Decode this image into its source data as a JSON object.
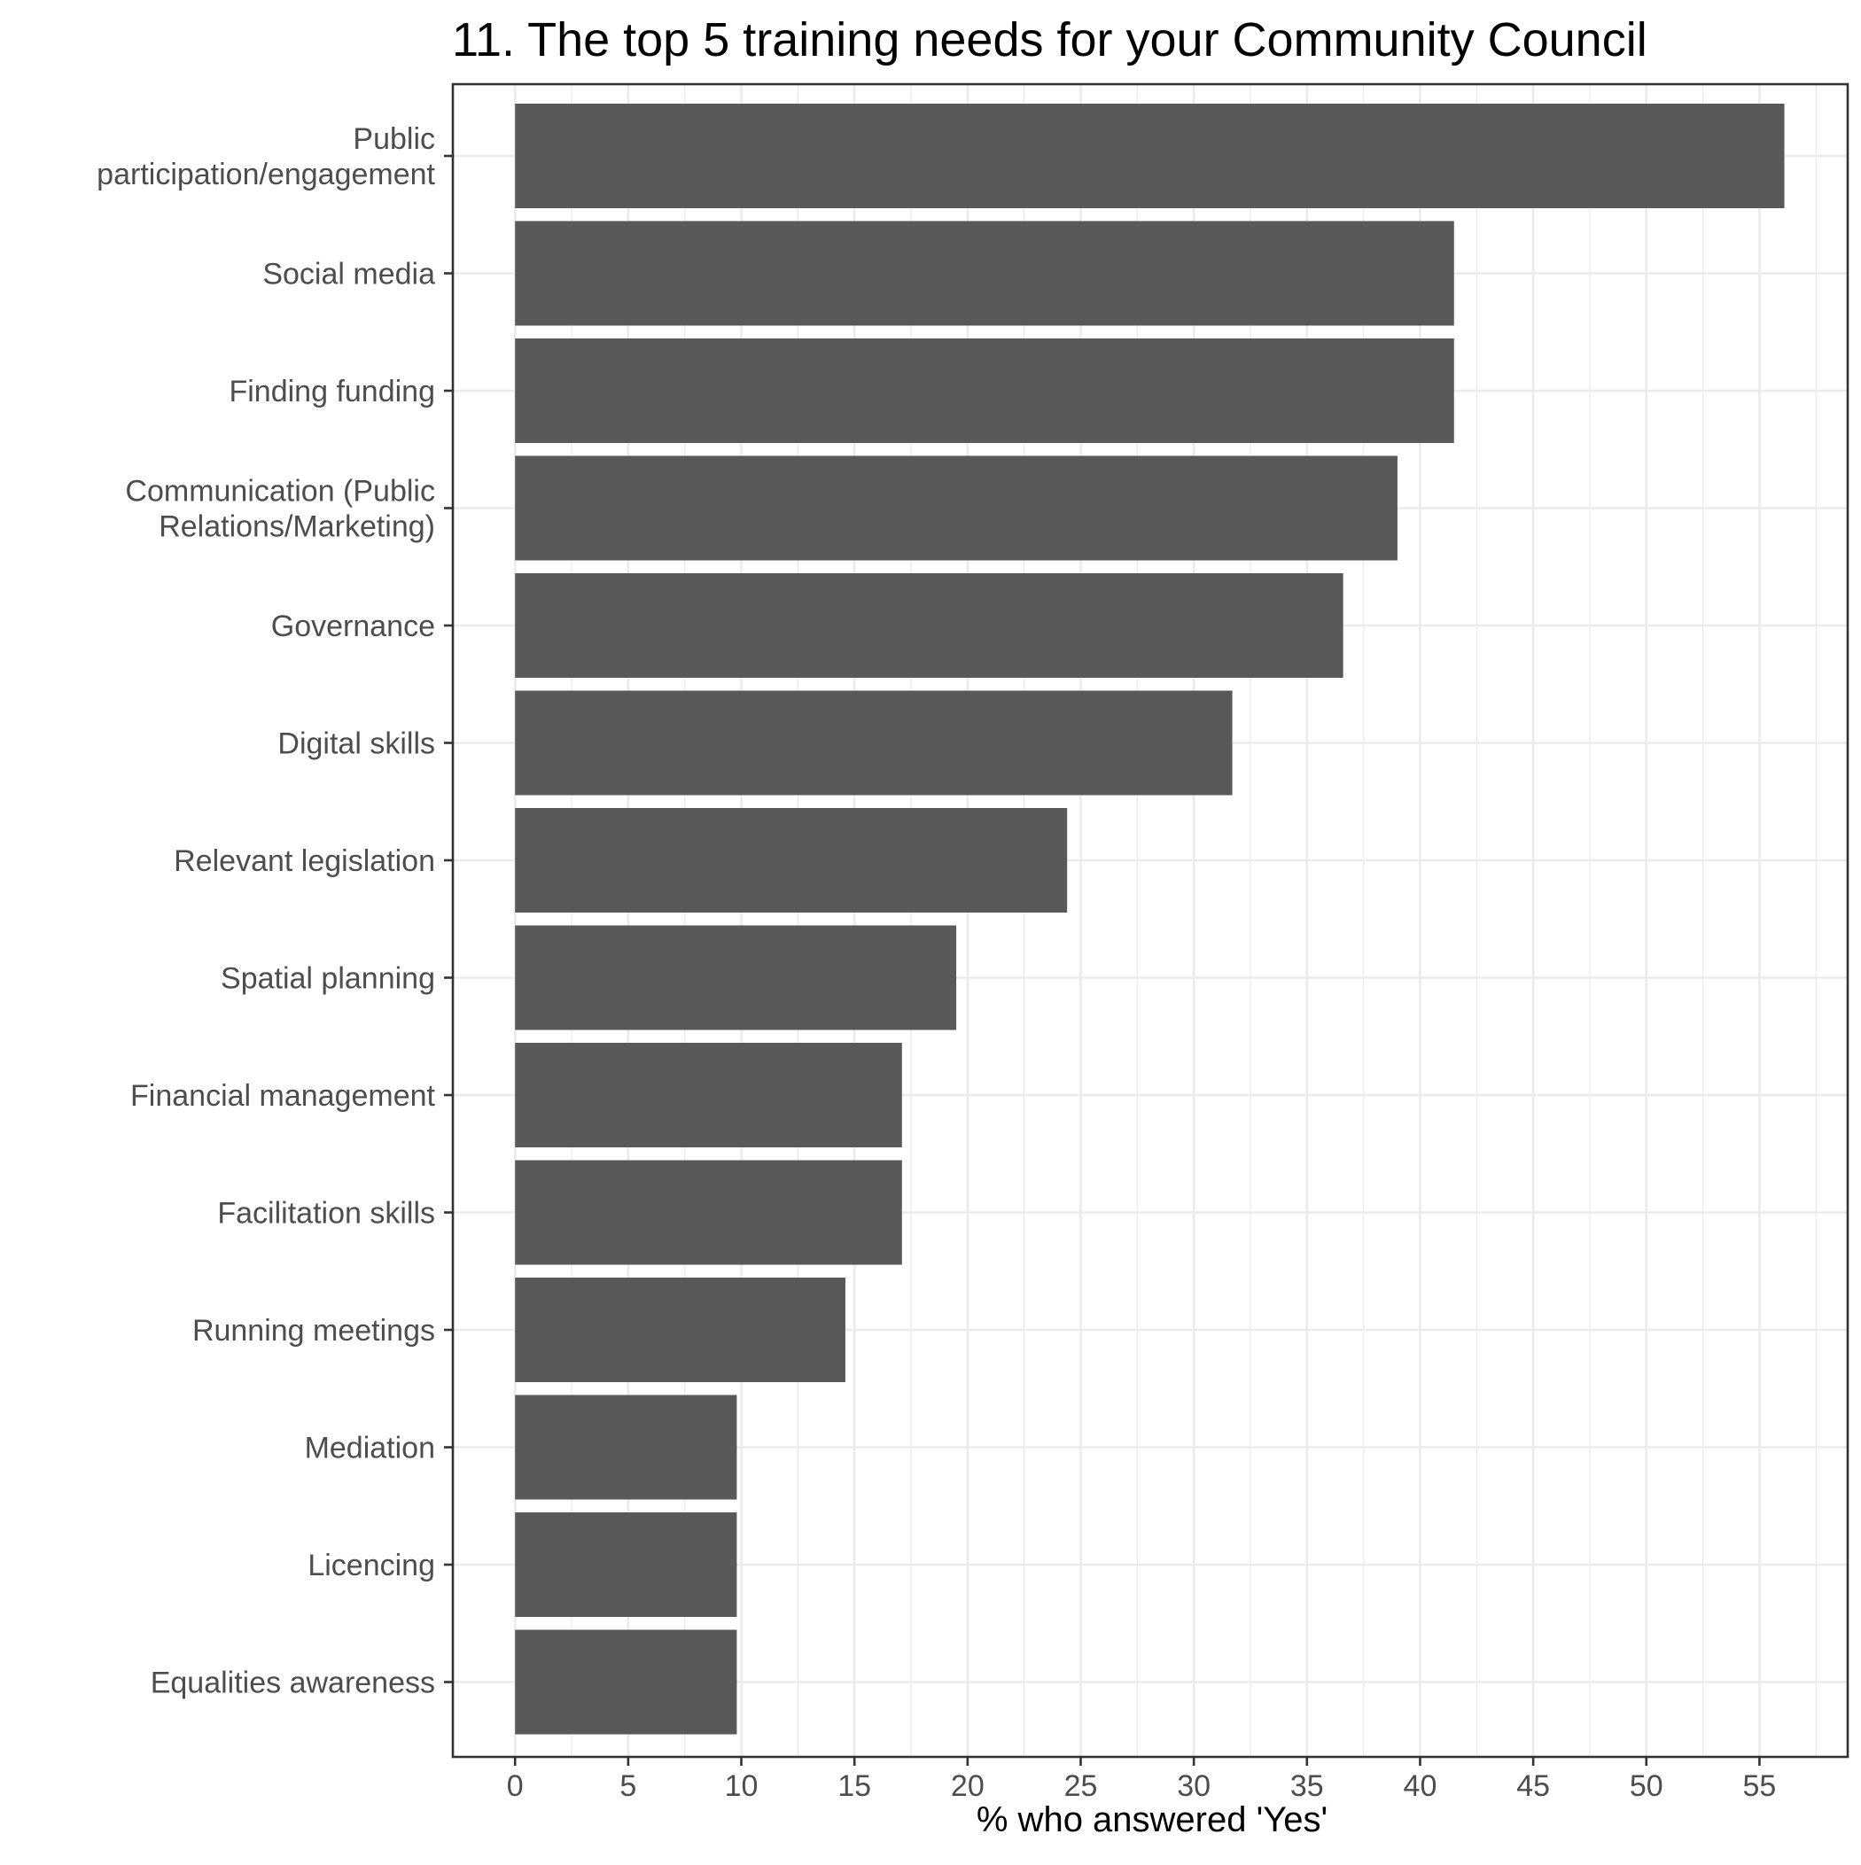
{
  "chart_data": {
    "type": "bar",
    "orientation": "horizontal",
    "title": "11.  The top 5 training needs for your Community Council",
    "xlabel": "% who answered 'Yes'",
    "ylabel": "",
    "categories": [
      "Public participation/engagement",
      "Social media",
      "Finding funding",
      "Communication (Public Relations/Marketing)",
      "Governance",
      "Digital skills",
      "Relevant legislation",
      "Spatial planning",
      "Financial management",
      "Facilitation skills",
      "Running meetings",
      "Mediation",
      "Licencing",
      "Equalities awareness"
    ],
    "category_label_lines": [
      [
        "Public",
        "participation/engagement"
      ],
      [
        "Social media"
      ],
      [
        "Finding funding"
      ],
      [
        "Communication (Public",
        "Relations/Marketing)"
      ],
      [
        "Governance"
      ],
      [
        "Digital skills"
      ],
      [
        "Relevant legislation"
      ],
      [
        "Spatial planning"
      ],
      [
        "Financial management"
      ],
      [
        "Facilitation skills"
      ],
      [
        "Running meetings"
      ],
      [
        "Mediation"
      ],
      [
        "Licencing"
      ],
      [
        "Equalities awareness"
      ]
    ],
    "values": [
      56.1,
      41.5,
      41.5,
      39.0,
      36.6,
      31.7,
      24.4,
      19.5,
      17.1,
      17.1,
      14.6,
      9.8,
      9.8,
      9.8
    ],
    "x_ticks": [
      "0",
      "5",
      "10",
      "15",
      "20",
      "25",
      "30",
      "35",
      "40",
      "45",
      "50",
      "55"
    ],
    "xlim": [
      -2.75,
      58.9
    ],
    "grid": true,
    "legend": "none",
    "colors": {
      "bar": "#595959",
      "grid": "#ebebeb",
      "panel_border": "#333333",
      "axis_text": "#4d4d4d",
      "tick": "#333333"
    }
  }
}
